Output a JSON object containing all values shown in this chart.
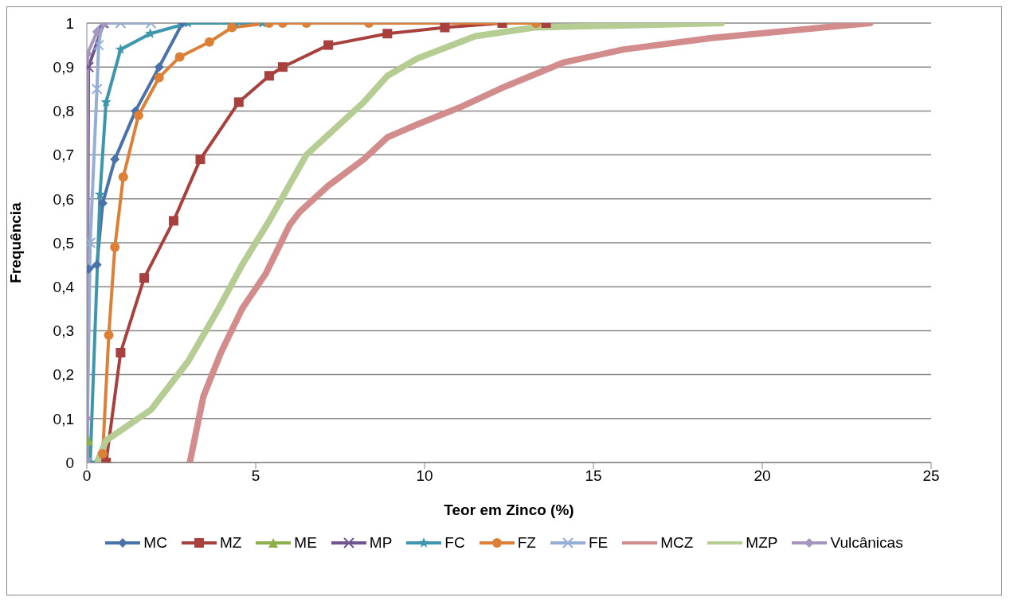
{
  "chart_data": {
    "type": "line",
    "xlabel": "Teor em Zinco (%)",
    "ylabel": "Frequência",
    "xlim": [
      0,
      25
    ],
    "xticks": [
      0,
      5,
      10,
      15,
      20,
      25
    ],
    "ylim": [
      0,
      1
    ],
    "yticks": [
      0,
      {
        "value": 0.1,
        "label": "0,1"
      },
      {
        "value": 0.2,
        "label": "0,2"
      },
      {
        "value": 0.3,
        "label": "0,3"
      },
      {
        "value": 0.4,
        "label": "0,4"
      },
      {
        "value": 0.5,
        "label": "0,5"
      },
      {
        "value": 0.6,
        "label": "0,6"
      },
      {
        "value": 0.7,
        "label": "0,7"
      },
      {
        "value": 0.8,
        "label": "0,8"
      },
      {
        "value": 0.9,
        "label": "0,9"
      },
      1
    ],
    "grid": "y",
    "legend": "bottom",
    "series": [
      {
        "name": "MC",
        "color": "#4a72aa",
        "marker": "diamond",
        "x": [
          0,
          0.05,
          0.3,
          0.47,
          0.83,
          1.44,
          2.14,
          2.83
        ],
        "values": [
          0,
          0.44,
          0.45,
          0.59,
          0.69,
          0.8,
          0.9,
          1
        ]
      },
      {
        "name": "MZ",
        "color": "#a8413e",
        "marker": "square",
        "x": [
          0.57,
          1.0,
          1.7,
          2.57,
          3.36,
          4.5,
          5.4,
          5.8,
          7.15,
          8.9,
          10.6,
          12.3,
          13.6
        ],
        "values": [
          0,
          0.25,
          0.42,
          0.55,
          0.69,
          0.82,
          0.88,
          0.9,
          0.95,
          0.976,
          0.99,
          1,
          1
        ]
      },
      {
        "name": "ME",
        "color": "#8db04a",
        "marker": "triangle",
        "x": [
          0,
          0.05
        ],
        "values": [
          0,
          0.05
        ]
      },
      {
        "name": "MP",
        "color": "#6f548f",
        "marker": "cross",
        "x": [
          0,
          0.05,
          0.5
        ],
        "values": [
          0,
          0.9,
          1
        ]
      },
      {
        "name": "FC",
        "color": "#3e96ad",
        "marker": "star",
        "x": [
          0.1,
          0.39,
          0.57,
          1.0,
          1.88,
          3.0,
          4.4,
          5.2
        ],
        "values": [
          0,
          0.61,
          0.82,
          0.94,
          0.976,
          1,
          1,
          1
        ]
      },
      {
        "name": "FZ",
        "color": "#dc8038",
        "marker": "circle",
        "x": [
          0.47,
          0.65,
          0.83,
          1.08,
          1.53,
          2.14,
          2.75,
          3.63,
          4.3,
          5.4,
          5.8,
          6.5,
          8.35,
          13.3
        ],
        "values": [
          0.02,
          0.29,
          0.49,
          0.65,
          0.79,
          0.876,
          0.923,
          0.957,
          0.99,
          1,
          1,
          1,
          1,
          1
        ]
      },
      {
        "name": "FE",
        "color": "#94aed6",
        "marker": "cross",
        "x": [
          0,
          0.1,
          0.3,
          0.35,
          0.45,
          1.0,
          1.9
        ],
        "values": [
          0,
          0.5,
          0.85,
          0.95,
          1,
          1,
          1
        ]
      },
      {
        "name": "MCZ",
        "color": "#d18c8b",
        "marker": "none",
        "x": [
          3.05,
          3.45,
          3.97,
          4.6,
          5.3,
          6.0,
          6.3,
          7.15,
          8.2,
          8.9,
          9.8,
          11.1,
          12.4,
          14.1,
          15.9,
          18.5,
          21.8,
          23.2
        ],
        "values": [
          0,
          0.15,
          0.25,
          0.35,
          0.43,
          0.54,
          0.57,
          0.63,
          0.69,
          0.74,
          0.77,
          0.81,
          0.856,
          0.91,
          0.94,
          0.966,
          0.99,
          1
        ]
      },
      {
        "name": "MZP",
        "color": "#b5cc92",
        "marker": "none",
        "x": [
          0.3,
          0.57,
          1.9,
          3.0,
          3.9,
          4.6,
          5.4,
          6.5,
          8.2,
          8.9,
          9.8,
          11.5,
          13.25,
          18.8
        ],
        "values": [
          0,
          0.05,
          0.12,
          0.23,
          0.35,
          0.45,
          0.55,
          0.7,
          0.82,
          0.88,
          0.92,
          0.97,
          0.99,
          1
        ]
      },
      {
        "name": "Vulcânicas",
        "color": "#a696bd",
        "marker": "diamond",
        "x": [
          0,
          0,
          0.02,
          0.3,
          0.5
        ],
        "values": [
          0,
          0.1,
          0.93,
          0.98,
          1
        ]
      }
    ]
  }
}
